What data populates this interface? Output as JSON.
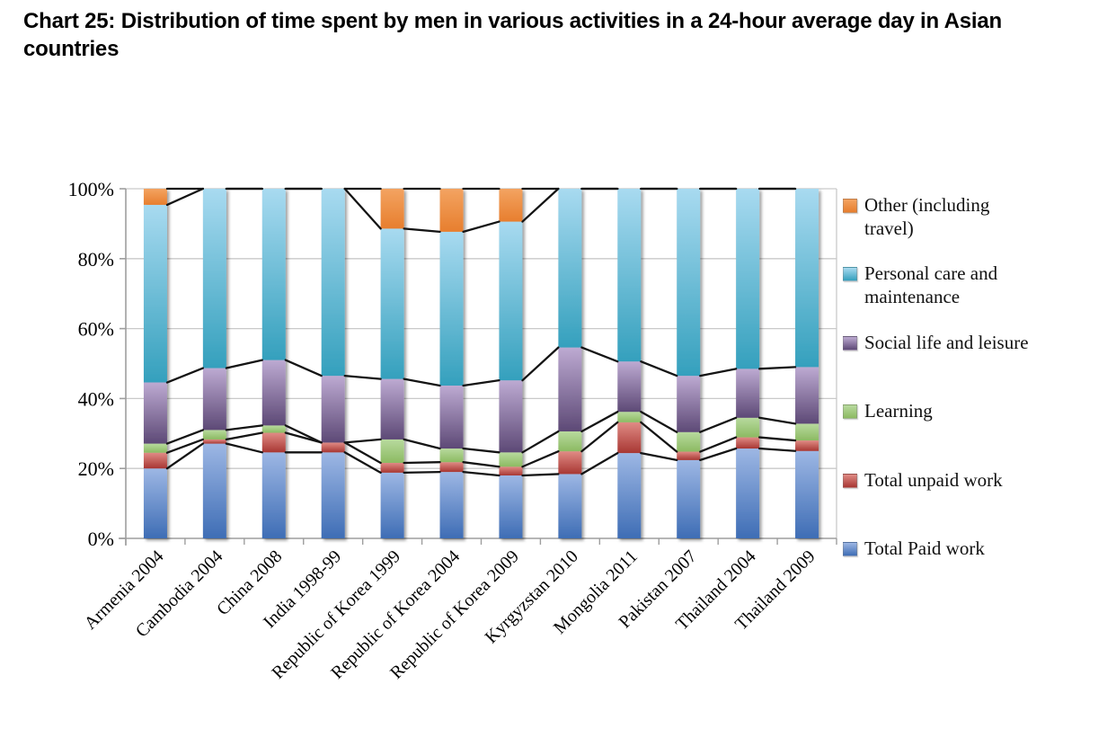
{
  "title": "Chart 25: Distribution of time spent by men in various activities in a 24-hour average day in Asian countries",
  "chart_data": {
    "type": "bar",
    "stacking": "percent-100",
    "title": "Chart 25: Distribution of time spent by men in various activities in a 24-hour average day in Asian countries",
    "categories": [
      "Armenia 2004",
      "Cambodia 2004",
      "China 2008",
      "India 1998-99",
      "Republic of Korea 1999",
      "Republic of Korea 2004",
      "Republic of Korea 2009",
      "Kyrgyzstan 2010",
      "Mongolia 2011",
      "Pakistan 2007",
      "Thailand 2004",
      "Thailand 2009"
    ],
    "series": [
      {
        "name": "Total Paid work",
        "color_top": "#9DB7E4",
        "color_bottom": "#3E6DB5",
        "values": [
          20.0,
          27.1,
          24.6,
          24.6,
          18.8,
          19.0,
          18.0,
          18.4,
          24.4,
          22.4,
          25.7,
          25.0
        ]
      },
      {
        "name": "Total unpaid work",
        "color_top": "#E08B85",
        "color_bottom": "#A83733",
        "values": [
          4.5,
          1.2,
          5.6,
          2.8,
          2.8,
          2.8,
          2.5,
          6.5,
          8.8,
          2.4,
          3.2,
          3.0
        ]
      },
      {
        "name": "Learning",
        "color_top": "#B8DA9E",
        "color_bottom": "#8CBA62",
        "values": [
          2.6,
          2.7,
          2.1,
          0.0,
          6.7,
          3.9,
          4.1,
          5.7,
          3.0,
          5.6,
          5.6,
          4.8
        ]
      },
      {
        "name": "Social life and leisure",
        "color_top": "#BDAAD2",
        "color_bottom": "#5D4976",
        "values": [
          17.5,
          17.7,
          18.7,
          19.1,
          17.3,
          18.0,
          20.6,
          24.0,
          14.4,
          16.1,
          14.0,
          16.2
        ]
      },
      {
        "name": "Personal care and maintenance",
        "color_top": "#A8DAF0",
        "color_bottom": "#34A0BD",
        "values": [
          50.8,
          51.3,
          49.0,
          53.5,
          43.0,
          44.0,
          45.4,
          45.4,
          49.4,
          53.5,
          51.5,
          51.0
        ]
      },
      {
        "name": "Other (including travel)",
        "color_top": "#F3A361",
        "color_bottom": "#E77E2E",
        "values": [
          4.6,
          0,
          0,
          0,
          11.4,
          12.3,
          9.4,
          0,
          0,
          0,
          0,
          0
        ]
      }
    ],
    "y_ticks": [
      "0%",
      "20%",
      "40%",
      "60%",
      "80%",
      "100%"
    ],
    "ylim": [
      0,
      100
    ],
    "grid": true,
    "legend_position": "right",
    "series_connector_lines": true,
    "colors": {
      "gridline": "#C9C9C9",
      "axis": "#9E9E9E",
      "connector_line": "#141414",
      "text": "#000000"
    }
  }
}
